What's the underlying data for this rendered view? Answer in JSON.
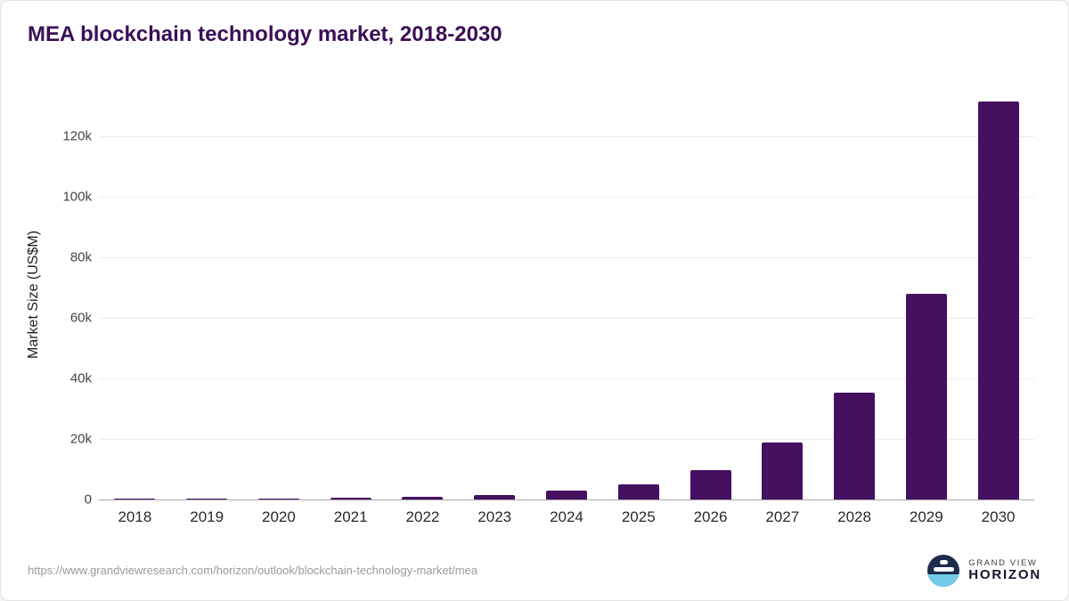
{
  "page": {
    "title": "MEA blockchain technology market, 2018-2030"
  },
  "chart_data": {
    "type": "bar",
    "title": "MEA blockchain technology market, 2018-2030",
    "xlabel": "",
    "ylabel": "Market Size (US$M)",
    "categories": [
      "2018",
      "2019",
      "2020",
      "2021",
      "2022",
      "2023",
      "2024",
      "2025",
      "2026",
      "2027",
      "2028",
      "2029",
      "2030"
    ],
    "values": [
      60,
      250,
      400,
      650,
      1000,
      1600,
      2800,
      5000,
      9800,
      18700,
      35200,
      68000,
      131600
    ],
    "yticks": [
      {
        "value": 0,
        "label": "0"
      },
      {
        "value": 20000,
        "label": "20k"
      },
      {
        "value": 40000,
        "label": "40k"
      },
      {
        "value": 60000,
        "label": "60k"
      },
      {
        "value": 80000,
        "label": "80k"
      },
      {
        "value": 100000,
        "label": "100k"
      },
      {
        "value": 120000,
        "label": "120k"
      }
    ],
    "ylim": [
      0,
      135300
    ],
    "grid": true,
    "legend": false,
    "bar_color": "#451060"
  },
  "colors": {
    "title": "#3b0e56",
    "bar": "#451060",
    "brand_accent": "#72cbea"
  },
  "footer": {
    "source_url": "https://www.grandviewresearch.com/horizon/outlook/blockchain-technology-market/mea",
    "brand_top": "GRAND VIEW",
    "brand_bottom": "HORIZON"
  }
}
